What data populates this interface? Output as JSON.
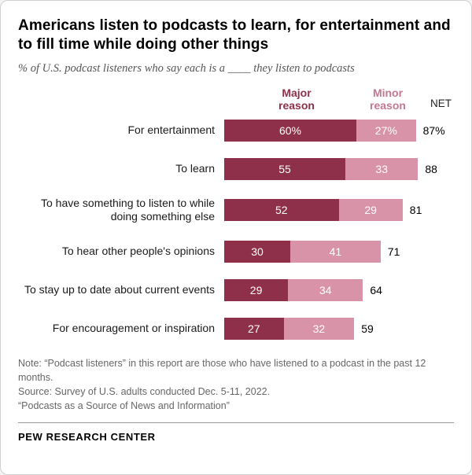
{
  "header": {
    "title": "Americans listen to podcasts to learn, for entertainment and to fill time while doing other things",
    "subtitle": "% of U.S. podcast listeners who say each is a ____ they listen to podcasts"
  },
  "legend": {
    "major": "Major\nreason",
    "minor": "Minor\nreason",
    "net": "NET"
  },
  "chart_data": {
    "type": "bar",
    "orientation": "horizontal",
    "stacked": true,
    "categories": [
      "For entertainment",
      "To learn",
      "To have something to listen to while doing something else",
      "To hear other people's opinions",
      "To stay up to date about current events",
      "For encouragement or inspiration"
    ],
    "series": [
      {
        "name": "Major reason",
        "color": "#8e3049",
        "values": [
          60,
          55,
          52,
          30,
          29,
          27
        ],
        "labels": [
          "60%",
          "55",
          "52",
          "30",
          "29",
          "27"
        ]
      },
      {
        "name": "Minor reason",
        "color": "#d893a8",
        "values": [
          27,
          33,
          29,
          41,
          34,
          32
        ],
        "labels": [
          "27%",
          "33",
          "29",
          "41",
          "34",
          "32"
        ]
      }
    ],
    "net": {
      "name": "NET",
      "values": [
        87,
        88,
        81,
        71,
        64,
        59
      ],
      "labels": [
        "87%",
        "88",
        "81",
        "71",
        "64",
        "59"
      ]
    },
    "xlim": [
      0,
      100
    ]
  },
  "notes": {
    "note": "Note: “Podcast listeners” in this report are those who have listened to a podcast in the past 12 months.",
    "source": "Source: Survey of U.S. adults conducted Dec. 5-11, 2022.",
    "report": "“Podcasts as a Source of News and Information”",
    "brand": "PEW RESEARCH CENTER"
  }
}
